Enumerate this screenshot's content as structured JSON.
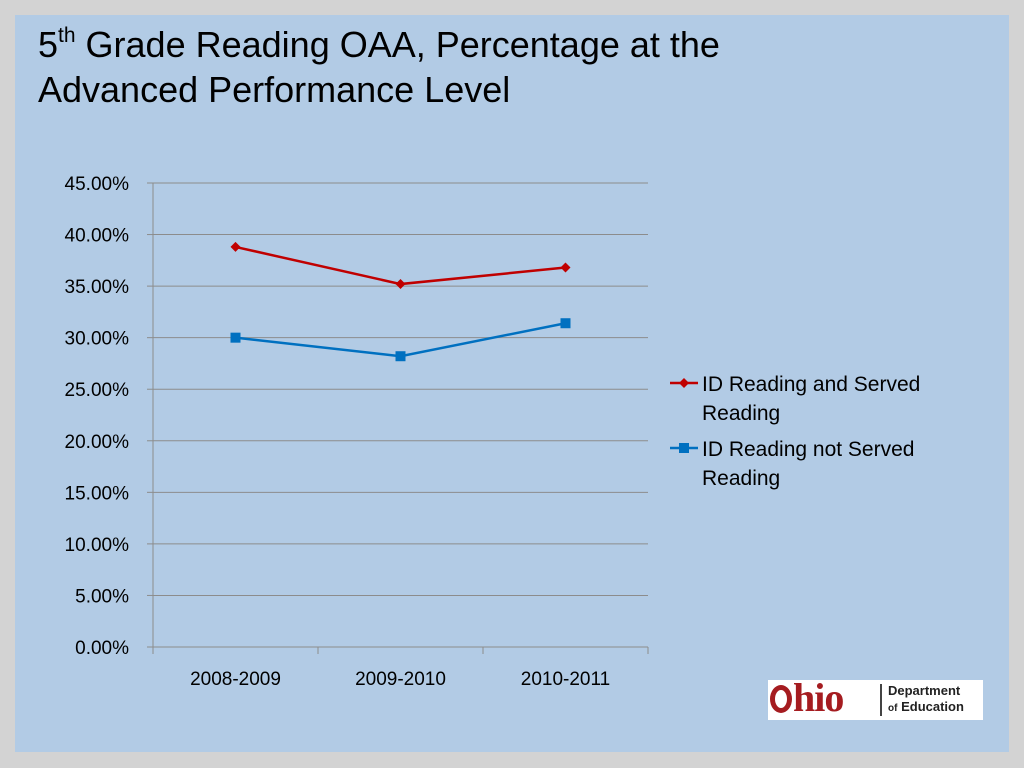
{
  "title": {
    "lead": "5",
    "superscript": "th",
    "rest_line1": " Grade Reading OAA, Percentage at the",
    "line2": "Advanced Performance Level"
  },
  "chart_data": {
    "type": "line",
    "categories": [
      "2008-2009",
      "2009-2010",
      "2010-2011"
    ],
    "series": [
      {
        "name": "ID Reading and Served Reading",
        "values": [
          0.388,
          0.352,
          0.368
        ],
        "color": "#c00000",
        "marker": "diamond"
      },
      {
        "name": "ID Reading not Served Reading",
        "values": [
          0.3,
          0.282,
          0.314
        ],
        "color": "#0070c0",
        "marker": "square"
      }
    ],
    "ylim": [
      0,
      0.45
    ],
    "ytick_step": 0.05,
    "ytick_labels": [
      "0.00%",
      "5.00%",
      "10.00%",
      "15.00%",
      "20.00%",
      "25.00%",
      "30.00%",
      "35.00%",
      "40.00%",
      "45.00%"
    ],
    "grid": true,
    "legend": {
      "placement": "right",
      "entries": [
        {
          "lines": [
            "ID Reading and Served",
            "Reading"
          ]
        },
        {
          "lines": [
            "ID Reading not Served",
            "Reading"
          ]
        }
      ]
    }
  },
  "logo": {
    "wordmark": "hio",
    "dept_line1": "Department",
    "dept_of": "of",
    "dept_line2": "Education"
  }
}
